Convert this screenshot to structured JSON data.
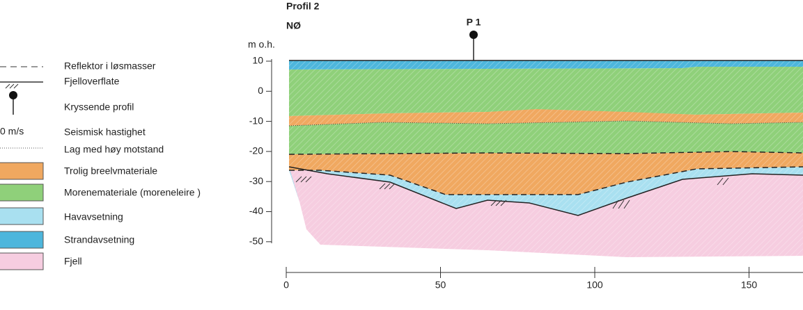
{
  "header": {
    "title": "Profil 2",
    "direction": "NØ",
    "marker": "P 1"
  },
  "axis": {
    "y_label": "m o.h.",
    "y_ticks": [
      "10",
      "0",
      "-10",
      "-20",
      "-30",
      "-40",
      "-50"
    ],
    "x_ticks": [
      "0",
      "50",
      "100",
      "150"
    ]
  },
  "legend": {
    "velocity_sample": "0 m/s",
    "items": [
      "Reflektor i løsmasser",
      "Fjelloverflate",
      "Kryssende profil",
      "Seismisk hastighet",
      "Lag med høy motstand",
      "Trolig breelvmateriale",
      "Morenemateriale (moreneleire )",
      "Havavsetning",
      "Strandavsetning",
      "Fjell"
    ]
  }
}
